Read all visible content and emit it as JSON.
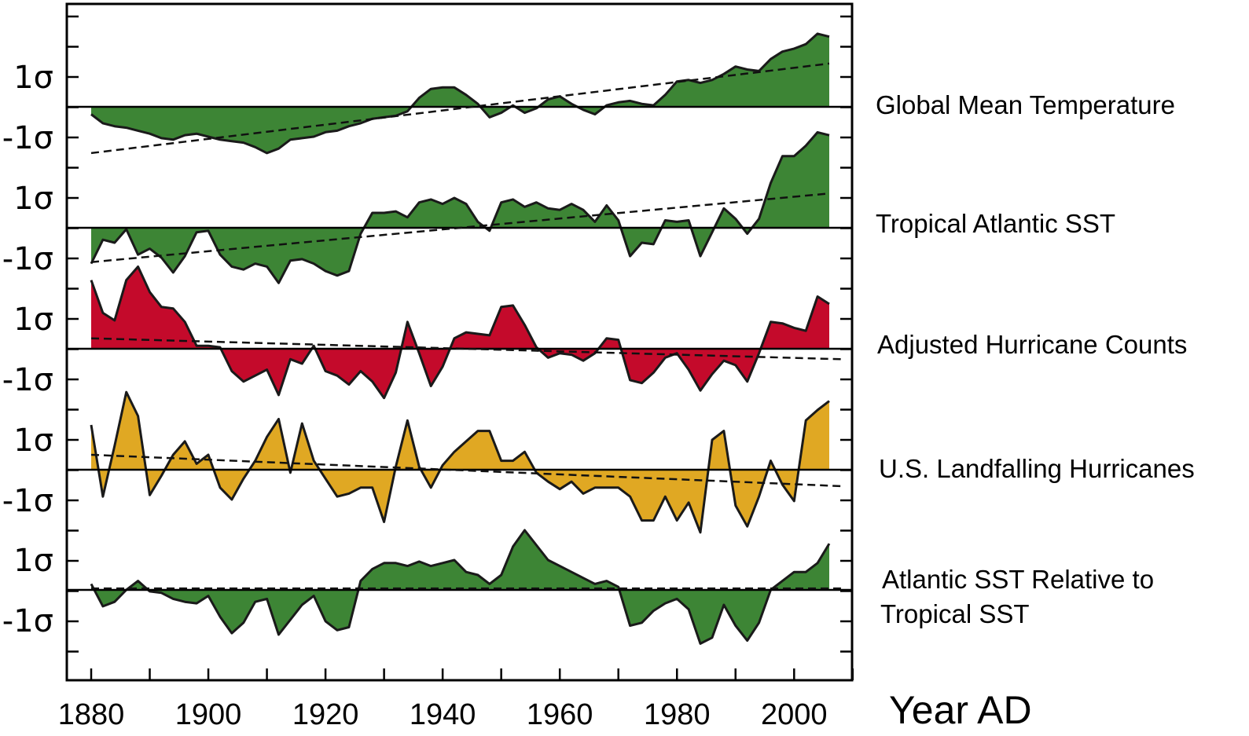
{
  "chart_data": {
    "type": "area",
    "xlabel": "Year AD",
    "xlim": [
      1875,
      2011
    ],
    "x_ticks": [
      "1880",
      "1900",
      "1920",
      "1940",
      "1960",
      "1980",
      "2000"
    ],
    "y_tick_labels": {
      "pos": "1σ",
      "neg": "-1σ"
    },
    "grid": false,
    "panels": [
      {
        "name": "Global Mean Temperature",
        "color": "#3d8535",
        "trend": [
          -1.55,
          1.45
        ],
        "x": [
          1880,
          1882,
          1884,
          1886,
          1888,
          1890,
          1892,
          1894,
          1896,
          1898,
          1900,
          1902,
          1904,
          1906,
          1908,
          1910,
          1912,
          1914,
          1916,
          1918,
          1920,
          1922,
          1924,
          1926,
          1928,
          1930,
          1932,
          1934,
          1936,
          1938,
          1940,
          1942,
          1944,
          1946,
          1948,
          1950,
          1952,
          1954,
          1956,
          1958,
          1960,
          1962,
          1964,
          1966,
          1968,
          1970,
          1972,
          1974,
          1976,
          1978,
          1980,
          1982,
          1984,
          1986,
          1988,
          1990,
          1992,
          1994,
          1996,
          1998,
          2000,
          2002,
          2004,
          2006
        ],
        "y": [
          -0.25,
          -0.55,
          -0.65,
          -0.7,
          -0.8,
          -0.9,
          -1.05,
          -1.1,
          -0.95,
          -0.9,
          -1.0,
          -1.1,
          -1.15,
          -1.2,
          -1.35,
          -1.55,
          -1.4,
          -1.1,
          -1.05,
          -1.0,
          -0.85,
          -0.8,
          -0.65,
          -0.55,
          -0.4,
          -0.35,
          -0.3,
          -0.15,
          0.3,
          0.6,
          0.65,
          0.65,
          0.4,
          0.1,
          -0.35,
          -0.2,
          0.05,
          -0.2,
          -0.05,
          0.25,
          0.35,
          0.1,
          -0.1,
          -0.25,
          0.05,
          0.15,
          0.2,
          0.1,
          0.05,
          0.4,
          0.85,
          0.9,
          0.8,
          0.9,
          1.1,
          1.35,
          1.25,
          1.2,
          1.6,
          1.85,
          1.95,
          2.1,
          2.45,
          2.35
        ]
      },
      {
        "name": "Tropical Atlantic SST",
        "color": "#3d8535",
        "trend": [
          -1.15,
          1.15
        ],
        "x": [
          1880,
          1882,
          1884,
          1886,
          1888,
          1890,
          1892,
          1894,
          1896,
          1898,
          1900,
          1902,
          1904,
          1906,
          1908,
          1910,
          1912,
          1914,
          1916,
          1918,
          1920,
          1922,
          1924,
          1926,
          1928,
          1930,
          1932,
          1934,
          1936,
          1938,
          1940,
          1942,
          1944,
          1946,
          1948,
          1950,
          1952,
          1954,
          1956,
          1958,
          1960,
          1962,
          1964,
          1966,
          1968,
          1970,
          1972,
          1974,
          1976,
          1978,
          1980,
          1982,
          1984,
          1986,
          1988,
          1990,
          1992,
          1994,
          1996,
          1998,
          2000,
          2002,
          2004,
          2006
        ],
        "y": [
          -1.2,
          -0.4,
          -0.5,
          -0.05,
          -0.9,
          -0.7,
          -1.0,
          -1.5,
          -0.95,
          -0.15,
          -0.1,
          -0.9,
          -1.3,
          -1.4,
          -1.2,
          -1.3,
          -1.85,
          -1.1,
          -1.05,
          -1.2,
          -1.45,
          -1.6,
          -1.45,
          -0.2,
          0.5,
          0.5,
          0.55,
          0.35,
          0.85,
          0.95,
          0.8,
          1.0,
          0.8,
          0.2,
          -0.1,
          0.85,
          0.95,
          0.7,
          0.85,
          0.65,
          0.6,
          0.8,
          0.6,
          0.2,
          0.75,
          0.25,
          -0.95,
          -0.5,
          -0.55,
          0.25,
          0.2,
          0.25,
          -0.95,
          -0.15,
          0.65,
          0.3,
          -0.2,
          0.3,
          1.5,
          2.4,
          2.4,
          2.75,
          3.2,
          3.1
        ]
      },
      {
        "name": "Adjusted Hurricane Counts",
        "color": "#c40a2b",
        "trend": [
          0.35,
          -0.35
        ],
        "x": [
          1880,
          1882,
          1884,
          1886,
          1888,
          1890,
          1892,
          1894,
          1896,
          1898,
          1900,
          1902,
          1904,
          1906,
          1908,
          1910,
          1912,
          1914,
          1916,
          1918,
          1920,
          1922,
          1924,
          1926,
          1928,
          1930,
          1932,
          1934,
          1936,
          1938,
          1940,
          1942,
          1944,
          1946,
          1948,
          1950,
          1952,
          1954,
          1956,
          1958,
          1960,
          1962,
          1964,
          1966,
          1968,
          1970,
          1972,
          1974,
          1976,
          1978,
          1980,
          1982,
          1984,
          1986,
          1988,
          1990,
          1992,
          1994,
          1996,
          1998,
          2000,
          2002,
          2004,
          2006
        ],
        "y": [
          2.3,
          1.2,
          0.95,
          2.3,
          2.75,
          1.9,
          1.4,
          1.35,
          0.9,
          0.1,
          0.1,
          0.05,
          -0.75,
          -1.1,
          -0.9,
          -0.7,
          -1.55,
          -0.35,
          -0.5,
          0.1,
          -0.75,
          -0.9,
          -1.2,
          -0.75,
          -1.1,
          -1.65,
          -0.8,
          0.9,
          -0.15,
          -1.25,
          -0.6,
          0.35,
          0.55,
          0.5,
          0.45,
          1.4,
          1.45,
          0.8,
          0.05,
          -0.3,
          -0.15,
          -0.2,
          -0.4,
          -0.15,
          0.35,
          0.3,
          -1.05,
          -1.15,
          -0.8,
          -0.3,
          -0.15,
          -0.7,
          -1.4,
          -0.85,
          -0.4,
          -0.55,
          -1.1,
          -0.15,
          0.9,
          0.85,
          0.7,
          0.6,
          1.75,
          1.5
        ]
      },
      {
        "name": "U.S. Landfalling Hurricanes",
        "color": "#e0a823",
        "trend": [
          0.5,
          -0.55
        ],
        "x": [
          1880,
          1882,
          1884,
          1886,
          1888,
          1890,
          1892,
          1894,
          1896,
          1898,
          1900,
          1902,
          1904,
          1906,
          1908,
          1910,
          1912,
          1914,
          1916,
          1918,
          1920,
          1922,
          1924,
          1926,
          1928,
          1930,
          1932,
          1934,
          1936,
          1938,
          1940,
          1942,
          1944,
          1946,
          1948,
          1950,
          1952,
          1954,
          1956,
          1958,
          1960,
          1962,
          1964,
          1966,
          1968,
          1970,
          1972,
          1974,
          1976,
          1978,
          1980,
          1982,
          1984,
          1986,
          1988,
          1990,
          1992,
          1994,
          1996,
          1998,
          2000,
          2002,
          2004,
          2006
        ],
        "y": [
          1.5,
          -0.9,
          0.8,
          2.6,
          1.8,
          -0.85,
          -0.2,
          0.5,
          0.95,
          0.2,
          0.5,
          -0.6,
          -1.0,
          -0.3,
          0.3,
          1.1,
          1.7,
          -0.1,
          1.55,
          0.3,
          -0.3,
          -0.9,
          -0.8,
          -0.6,
          -0.6,
          -1.75,
          0.1,
          1.65,
          0.1,
          -0.6,
          0.15,
          0.6,
          0.95,
          1.3,
          1.3,
          0.3,
          0.3,
          0.6,
          -0.1,
          -0.4,
          -0.65,
          -0.4,
          -0.8,
          -0.6,
          -0.6,
          -0.6,
          -0.9,
          -1.7,
          -1.7,
          -0.9,
          -1.7,
          -1.1,
          -2.1,
          1.0,
          1.3,
          -1.2,
          -1.9,
          -0.9,
          0.3,
          -0.5,
          -1.05,
          1.65,
          2.0,
          2.3
        ]
      },
      {
        "name": "Atlantic SST Relative to Tropical SST",
        "color": "#3d8535",
        "trend": [
          0.05,
          0.05
        ],
        "x": [
          1880,
          1882,
          1884,
          1886,
          1888,
          1890,
          1892,
          1894,
          1896,
          1898,
          1900,
          1902,
          1904,
          1906,
          1908,
          1910,
          1912,
          1914,
          1916,
          1918,
          1920,
          1922,
          1924,
          1926,
          1928,
          1930,
          1932,
          1934,
          1936,
          1938,
          1940,
          1942,
          1944,
          1946,
          1948,
          1950,
          1952,
          1954,
          1956,
          1958,
          1960,
          1962,
          1964,
          1966,
          1968,
          1970,
          1972,
          1974,
          1976,
          1978,
          1980,
          1982,
          1984,
          1986,
          1988,
          1990,
          1992,
          1994,
          1996,
          1998,
          2000,
          2002,
          2004,
          2006
        ],
        "y": [
          0.2,
          -0.55,
          -0.4,
          0.0,
          0.3,
          -0.05,
          -0.1,
          -0.3,
          -0.4,
          -0.45,
          -0.2,
          -0.9,
          -1.45,
          -1.1,
          -0.4,
          -0.3,
          -1.5,
          -1.0,
          -0.5,
          -0.2,
          -1.05,
          -1.35,
          -1.25,
          0.3,
          0.7,
          0.9,
          0.9,
          0.8,
          0.95,
          0.8,
          0.9,
          1.0,
          0.6,
          0.5,
          0.2,
          0.5,
          1.45,
          2.0,
          1.5,
          1.0,
          0.8,
          0.6,
          0.4,
          0.2,
          0.3,
          0.1,
          -1.2,
          -1.1,
          -0.7,
          -0.45,
          -0.3,
          -0.65,
          -1.8,
          -1.6,
          -0.5,
          -1.2,
          -1.7,
          -1.1,
          0.0,
          0.3,
          0.6,
          0.6,
          0.9,
          1.55
        ]
      }
    ]
  }
}
